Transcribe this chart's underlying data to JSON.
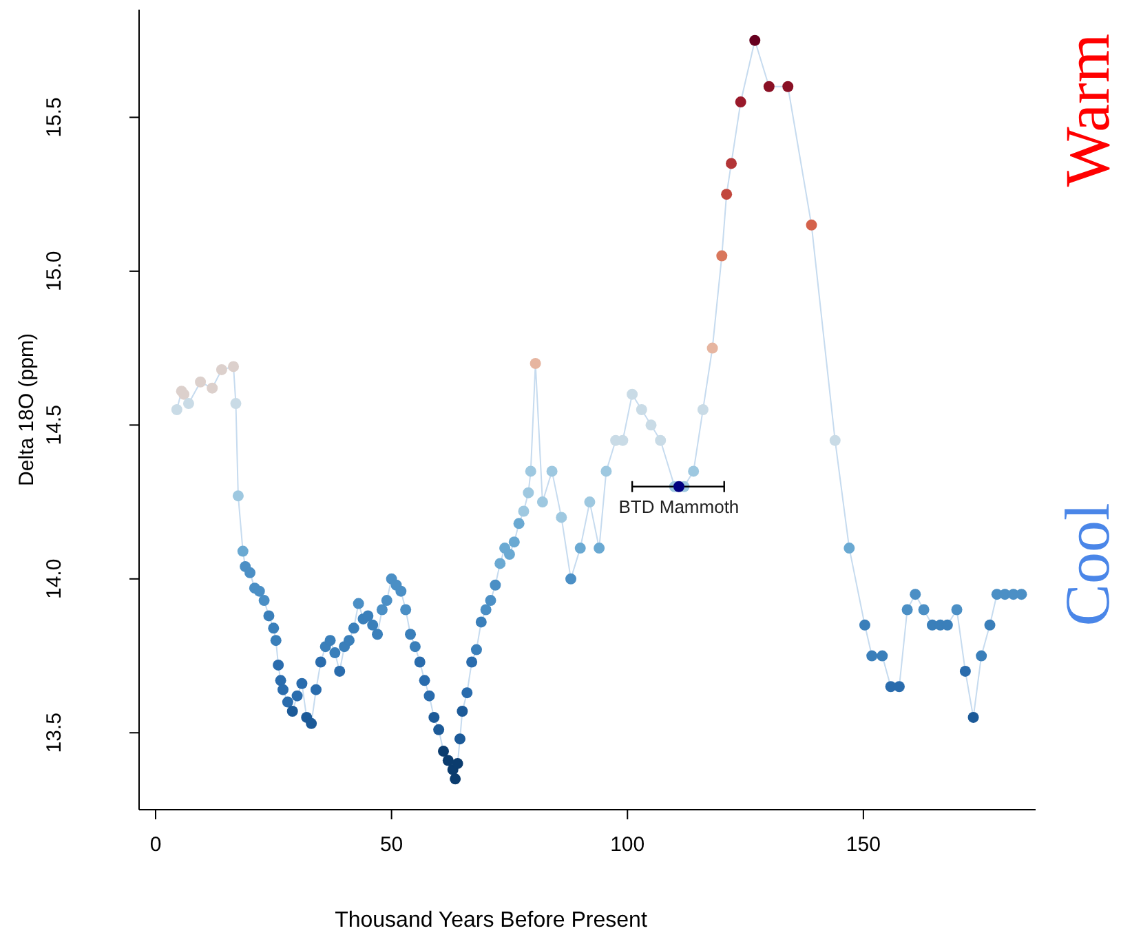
{
  "chart_data": {
    "type": "scatter",
    "xlabel": "Thousand Years Before Present",
    "ylabel": "Delta 18O (ppm)",
    "xlim": [
      -3.5,
      186.5
    ],
    "xticks": [
      0,
      50,
      100,
      150
    ],
    "ylim": [
      13.25,
      15.85
    ],
    "yticks": [
      13.5,
      {
        "value": 14,
        "label": "14.0"
      },
      14.5,
      {
        "value": 15,
        "label": "15.0"
      },
      15.5
    ],
    "grid": false,
    "series": [
      {
        "type": "line",
        "color": "#c6dbef",
        "marker": "circle",
        "x": [
          4.5,
          5.5,
          6,
          7,
          9.5,
          12,
          14,
          16.5,
          17,
          17.5,
          18.5,
          19,
          20,
          21,
          22,
          23,
          24,
          25,
          25.5,
          26,
          26.5,
          27,
          28,
          29,
          30,
          31,
          32,
          33,
          34,
          35,
          36,
          37,
          38,
          39,
          40,
          41,
          42,
          43,
          44,
          45,
          46,
          47,
          48,
          49,
          50,
          51,
          52,
          53,
          54,
          55,
          56,
          57,
          58,
          59,
          60,
          61,
          62,
          63,
          63.5,
          64,
          64.5,
          65,
          66,
          67,
          68,
          69,
          70,
          71,
          72,
          73,
          74,
          75,
          76,
          77,
          78,
          79,
          79.5,
          80.5,
          82,
          84,
          86,
          88,
          90,
          92,
          94,
          95.5,
          97.5,
          99,
          101,
          103,
          105,
          107,
          110,
          112,
          114,
          116,
          118,
          120,
          121,
          122,
          124,
          127,
          130,
          134,
          139,
          144,
          147,
          150.3,
          151.8,
          154,
          155.8,
          157.6,
          159.3,
          161,
          162.8,
          164.6,
          166.3,
          167.8,
          169.8,
          171.6,
          173.3,
          175,
          176.8,
          178.3,
          180,
          181.8,
          183.5
        ],
        "values": [
          14.55,
          14.61,
          14.6,
          14.57,
          14.64,
          14.62,
          14.68,
          14.69,
          14.57,
          14.27,
          14.09,
          14.04,
          14.02,
          13.97,
          13.96,
          13.93,
          13.88,
          13.84,
          13.8,
          13.72,
          13.67,
          13.64,
          13.6,
          13.57,
          13.62,
          13.66,
          13.55,
          13.53,
          13.64,
          13.73,
          13.78,
          13.8,
          13.76,
          13.7,
          13.78,
          13.8,
          13.84,
          13.92,
          13.87,
          13.88,
          13.85,
          13.82,
          13.9,
          13.93,
          14.0,
          13.98,
          13.96,
          13.9,
          13.82,
          13.78,
          13.73,
          13.67,
          13.62,
          13.55,
          13.51,
          13.44,
          13.41,
          13.38,
          13.35,
          13.4,
          13.48,
          13.57,
          13.63,
          13.73,
          13.77,
          13.86,
          13.9,
          13.93,
          13.98,
          14.05,
          14.1,
          14.08,
          14.12,
          14.18,
          14.22,
          14.28,
          14.35,
          14.7,
          14.25,
          14.35,
          14.2,
          14.0,
          14.1,
          14.25,
          14.1,
          14.35,
          14.45,
          14.45,
          14.6,
          14.55,
          14.5,
          14.45,
          14.3,
          14.3,
          14.35,
          14.55,
          14.75,
          15.05,
          15.25,
          15.35,
          15.55,
          15.75,
          15.6,
          15.6,
          15.15,
          14.45,
          14.1,
          13.85,
          13.75,
          13.75,
          13.65,
          13.65,
          13.9,
          13.95,
          13.9,
          13.85,
          13.85,
          13.85,
          13.9,
          13.7,
          13.55,
          13.75,
          13.85,
          13.95,
          13.95,
          13.95,
          13.95
        ],
        "colors": [
          "#c9dbe6",
          "#dcd0cc",
          "#dcd0cc",
          "#c9dbe6",
          "#dcd0cc",
          "#dcd0cc",
          "#dcd0cc",
          "#dcd0cc",
          "#c9dbe6",
          "#9ec8e0",
          "#6aa9d2",
          "#4b8fc5",
          "#4b8fc5",
          "#4b8fc5",
          "#4b8fc5",
          "#4b8fc5",
          "#3a7fba",
          "#3a7fba",
          "#3a7fba",
          "#2a6cad",
          "#2a6cad",
          "#2a6cad",
          "#2a6cad",
          "#1c5a98",
          "#2a6cad",
          "#2a6cad",
          "#1c5a98",
          "#1c5a98",
          "#2a6cad",
          "#2a6cad",
          "#3a7fba",
          "#3a7fba",
          "#3a7fba",
          "#2a6cad",
          "#3a7fba",
          "#3a7fba",
          "#3a7fba",
          "#4b8fc5",
          "#3a7fba",
          "#3a7fba",
          "#3a7fba",
          "#3a7fba",
          "#4b8fc5",
          "#4b8fc5",
          "#4b8fc5",
          "#4b8fc5",
          "#4b8fc5",
          "#4b8fc5",
          "#3a7fba",
          "#3a7fba",
          "#2a6cad",
          "#2a6cad",
          "#2a6cad",
          "#1c5a98",
          "#1c5a98",
          "#0b3c6e",
          "#0b3c6e",
          "#0b3c6e",
          "#0b3c6e",
          "#0b3c6e",
          "#1c5a98",
          "#1c5a98",
          "#2a6cad",
          "#2a6cad",
          "#3a7fba",
          "#3a7fba",
          "#4b8fc5",
          "#4b8fc5",
          "#4b8fc5",
          "#6aa9d2",
          "#6aa9d2",
          "#6aa9d2",
          "#6aa9d2",
          "#6aa9d2",
          "#9ec8e0",
          "#9ec8e0",
          "#9ec8e0",
          "#e6b5a0",
          "#9ec8e0",
          "#9ec8e0",
          "#9ec8e0",
          "#4b8fc5",
          "#6aa9d2",
          "#9ec8e0",
          "#6aa9d2",
          "#9ec8e0",
          "#c9dbe6",
          "#c9dbe6",
          "#c9dbe6",
          "#c9dbe6",
          "#c9dbe6",
          "#c9dbe6",
          "#9ec8e0",
          "#9ec8e0",
          "#9ec8e0",
          "#c9dbe6",
          "#e6b5a0",
          "#d9775c",
          "#c2473d",
          "#b33537",
          "#99192a",
          "#67001f",
          "#8a1125",
          "#8a1125",
          "#d4624b",
          "#c9dbe6",
          "#6aa9d2",
          "#3a7fba",
          "#3a7fba",
          "#3a7fba",
          "#2a6cad",
          "#2a6cad",
          "#4b8fc5",
          "#4b8fc5",
          "#4b8fc5",
          "#3a7fba",
          "#3a7fba",
          "#3a7fba",
          "#4b8fc5",
          "#2a6cad",
          "#1c5a98",
          "#3a7fba",
          "#3a7fba",
          "#4b8fc5",
          "#4b8fc5",
          "#4b8fc5",
          "#4b8fc5"
        ]
      },
      {
        "color": "#000080",
        "marker": "circle",
        "x": [
          110.9
        ],
        "values": [
          14.3
        ],
        "xerrors": [
          [
            101,
            120.5
          ]
        ]
      }
    ],
    "annotations": [
      {
        "text": "BTD Mammoth",
        "x": 110.9,
        "y": 14.3
      },
      "Warm",
      "Cool"
    ]
  }
}
